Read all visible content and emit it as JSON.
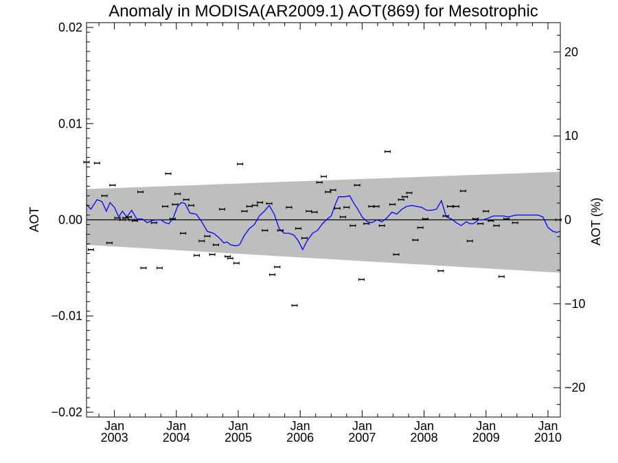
{
  "chart_data": {
    "type": "scatter",
    "title": "Anomaly in MODISA(AR2009.1) AOT(869) for Mesotrophic",
    "ylabel_left": "AOT",
    "ylabel_right": "AOT (%)",
    "xlim": [
      2002.55,
      2010.2
    ],
    "ylim_left": [
      -0.0205,
      0.0205
    ],
    "ylim_right": [
      -23.5,
      23.5
    ],
    "left_ticks": [
      {
        "value": 0.02,
        "label": "0.02"
      },
      {
        "value": 0.01,
        "label": "0.01"
      },
      {
        "value": 0.0,
        "label": "0.00"
      },
      {
        "value": -0.01,
        "label": "−0.01"
      },
      {
        "value": -0.02,
        "label": "−0.02"
      }
    ],
    "right_ticks": [
      {
        "value": 20,
        "label": "20"
      },
      {
        "value": 10,
        "label": "10"
      },
      {
        "value": 0,
        "label": "0"
      },
      {
        "value": -10,
        "label": "−10"
      },
      {
        "value": -20,
        "label": "−20"
      }
    ],
    "x_ticks": [
      {
        "value": 2003.0,
        "month": "Jan",
        "year": "2003"
      },
      {
        "value": 2004.0,
        "month": "Jan",
        "year": "2004"
      },
      {
        "value": 2005.0,
        "month": "Jan",
        "year": "2005"
      },
      {
        "value": 2006.0,
        "month": "Jan",
        "year": "2006"
      },
      {
        "value": 2007.0,
        "month": "Jan",
        "year": "2007"
      },
      {
        "value": 2008.0,
        "month": "Jan",
        "year": "2008"
      },
      {
        "value": 2009.0,
        "month": "Jan",
        "year": "2009"
      },
      {
        "value": 2010.0,
        "month": "Jan",
        "year": "2010"
      }
    ],
    "zero_line": 0.0,
    "envelope": {
      "color": "#bebebe",
      "upper": [
        [
          2002.55,
          0.0032
        ],
        [
          2010.2,
          0.005
        ]
      ],
      "lower": [
        [
          2002.55,
          -0.0026
        ],
        [
          2010.2,
          -0.0055
        ]
      ]
    },
    "points": {
      "color": "#000000",
      "x": [
        2002.55,
        2002.62,
        2002.72,
        2002.84,
        2002.92,
        2002.97,
        2003.05,
        2003.13,
        2003.18,
        2003.23,
        2003.28,
        2003.33,
        2003.42,
        2003.47,
        2003.64,
        2003.73,
        2003.82,
        2003.87,
        2003.94,
        2003.98,
        2004.02,
        2004.11,
        2004.16,
        2004.24,
        2004.33,
        2004.41,
        2004.5,
        2004.58,
        2004.64,
        2004.74,
        2004.83,
        2004.87,
        2004.97,
        2005.03,
        2005.1,
        2005.18,
        2005.27,
        2005.35,
        2005.43,
        2005.5,
        2005.55,
        2005.63,
        2005.68,
        2005.82,
        2005.91,
        2005.97,
        2006.07,
        2006.14,
        2006.23,
        2006.31,
        2006.38,
        2006.45,
        2006.53,
        2006.6,
        2006.69,
        2006.75,
        2006.85,
        2006.92,
        2006.99,
        2007.07,
        2007.15,
        2007.23,
        2007.32,
        2007.41,
        2007.49,
        2007.55,
        2007.63,
        2007.69,
        2007.76,
        2007.86,
        2007.94,
        2008.02,
        2008.27,
        2008.35,
        2008.42,
        2008.52,
        2008.63,
        2008.74,
        2008.83,
        2008.91,
        2009.0,
        2009.08,
        2009.17,
        2009.25,
        2009.33,
        2009.47,
        2009.64,
        2009.83,
        2009.93,
        2009.99,
        2010.07,
        2010.17
      ],
      "y": [
        0.006,
        -0.0031,
        0.0059,
        0.0025,
        -0.0024,
        0.0036,
        0.0002,
        0.0,
        0.0002,
        0.0003,
        0.0,
        -0.0001,
        0.0029,
        -0.005,
        -0.0003,
        -0.005,
        0.0014,
        0.0048,
        0.0001,
        0.0016,
        0.0027,
        -0.0014,
        0.0021,
        0.0015,
        -0.0037,
        -0.0022,
        -0.0017,
        -0.0036,
        -0.0026,
        0.0011,
        -0.0038,
        -0.004,
        -0.0045,
        0.0058,
        0.0009,
        0.0014,
        0.0015,
        0.0018,
        -0.0011,
        0.0017,
        -0.0057,
        -0.0049,
        -0.0011,
        0.0013,
        -0.0089,
        -0.0009,
        -0.0019,
        0.0009,
        0.0008,
        0.0039,
        0.0045,
        0.0029,
        0.0031,
        0.0012,
        0.0003,
        0.0013,
        -0.0006,
        0.0036,
        -0.0062,
        -0.0004,
        0.0014,
        0.0014,
        -0.0006,
        0.0071,
        0.0016,
        -0.0036,
        0.0021,
        0.0024,
        0.0028,
        -0.0021,
        -0.0008,
        0.0001,
        -0.0053,
        0.0004,
        0.0014,
        0.0014,
        0.003,
        -0.0022,
        0.0001,
        -0.0004,
        0.0009,
        -0.0001,
        -0.0006,
        -0.0059,
        0.0001,
        -0.0003,
        0.0,
        0.0,
        0.0,
        0.0,
        0.0,
        0.0
      ]
    },
    "trend": {
      "color": "#0000ff",
      "x": [
        2002.55,
        2002.62,
        2002.72,
        2002.8,
        2002.87,
        2002.93,
        2003.0,
        2003.07,
        2003.13,
        2003.2,
        2003.28,
        2003.36,
        2003.45,
        2003.53,
        2003.6,
        2003.67,
        2003.75,
        2003.82,
        2003.88,
        2003.95,
        2004.02,
        2004.08,
        2004.14,
        2004.22,
        2004.32,
        2004.4,
        2004.5,
        2004.6,
        2004.68,
        2004.77,
        2004.82,
        2004.88,
        2004.96,
        2005.02,
        2005.1,
        2005.18,
        2005.26,
        2005.34,
        2005.42,
        2005.5,
        2005.58,
        2005.66,
        2005.74,
        2005.82,
        2005.9,
        2005.97,
        2006.04,
        2006.1,
        2006.2,
        2006.28,
        2006.36,
        2006.44,
        2006.5,
        2006.56,
        2006.62,
        2006.72,
        2006.8,
        2006.86,
        2006.93,
        2007.0,
        2007.08,
        2007.16,
        2007.24,
        2007.32,
        2007.4,
        2007.48,
        2007.56,
        2007.64,
        2007.72,
        2007.8,
        2007.88,
        2007.96,
        2008.04,
        2008.12,
        2008.2,
        2008.28,
        2008.36,
        2008.44,
        2008.52,
        2008.6,
        2008.68,
        2008.74,
        2008.8,
        2008.88,
        2008.96,
        2009.04,
        2009.12,
        2009.2,
        2009.28,
        2009.36,
        2009.48,
        2009.6,
        2009.72,
        2009.84,
        2009.92,
        2010.0,
        2010.08,
        2010.14,
        2010.2
      ],
      "y": [
        0.0016,
        0.0011,
        0.0021,
        0.0019,
        0.0009,
        0.0018,
        0.0013,
        0.0003,
        0.0009,
        0.0003,
        0.001,
        0.0001,
        0.0001,
        -0.0003,
        -0.0001,
        0.0,
        0.0,
        -0.0003,
        -0.0004,
        0.0002,
        0.0014,
        0.0018,
        0.0017,
        0.0007,
        0.0006,
        -0.0001,
        -0.0012,
        -0.0014,
        -0.0018,
        -0.0024,
        -0.0023,
        -0.0026,
        -0.0027,
        -0.0026,
        -0.0016,
        -0.0009,
        -0.0005,
        0.0004,
        0.0009,
        0.0015,
        0.0006,
        -0.0009,
        -0.0014,
        -0.0014,
        -0.0016,
        -0.0022,
        -0.0031,
        -0.0023,
        -0.0014,
        -0.0011,
        -0.0004,
        0.0001,
        0.0004,
        0.0015,
        0.0024,
        0.0024,
        0.0025,
        0.0018,
        0.0011,
        0.0003,
        -0.0002,
        -0.0003,
        0.0,
        -0.0002,
        0.0002,
        0.0008,
        0.0006,
        0.0011,
        0.0014,
        0.0015,
        0.0014,
        0.0013,
        0.001,
        0.001,
        0.0011,
        0.002,
        0.0003,
        0.0001,
        -0.0003,
        -0.0006,
        -0.0002,
        -0.0004,
        -0.0004,
        0.0,
        0.0,
        0.0002,
        0.0004,
        0.0004,
        0.0004,
        0.0003,
        0.0005,
        0.0005,
        0.0005,
        0.0005,
        0.0003,
        -0.0008,
        -0.0012,
        -0.0013,
        -0.0012
      ]
    }
  }
}
